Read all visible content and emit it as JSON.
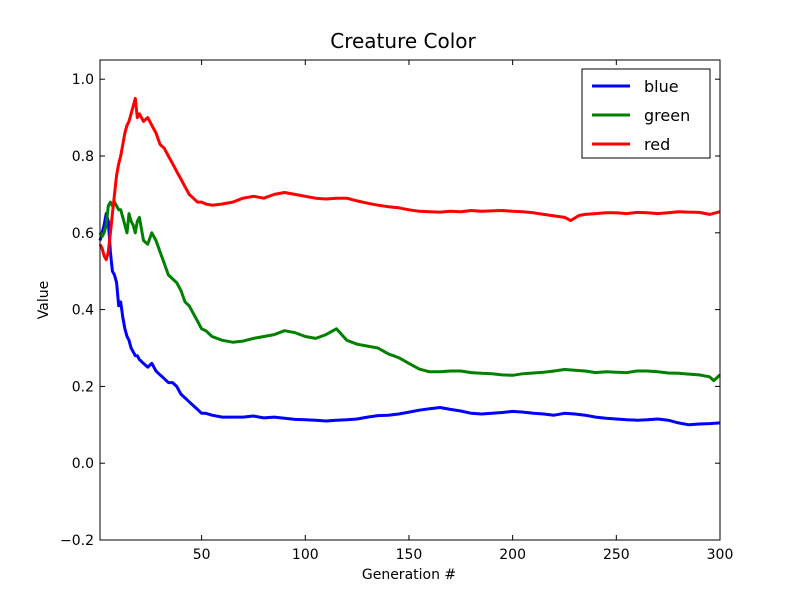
{
  "chart_data": {
    "type": "line",
    "title": "Creature Color",
    "xlabel": "Generation #",
    "ylabel": "Value",
    "xlim": [
      1,
      300
    ],
    "ylim": [
      -0.2,
      1.05
    ],
    "x_ticks": [
      50,
      100,
      150,
      200,
      250,
      300
    ],
    "x_tick_labels": [
      "50",
      "100",
      "150",
      "200",
      "250",
      "300"
    ],
    "y_ticks": [
      -0.2,
      0.0,
      0.2,
      0.4,
      0.6,
      0.8,
      1.0
    ],
    "y_tick_labels": [
      "−0.2",
      "0.0",
      "0.2",
      "0.4",
      "0.6",
      "0.8",
      "1.0"
    ],
    "grid": false,
    "legend_position": "top-right",
    "series": [
      {
        "name": "blue",
        "color": "#0000ff",
        "points": [
          [
            1,
            0.58
          ],
          [
            2,
            0.6
          ],
          [
            3,
            0.62
          ],
          [
            4,
            0.65
          ],
          [
            5,
            0.63
          ],
          [
            6,
            0.55
          ],
          [
            7,
            0.5
          ],
          [
            8,
            0.49
          ],
          [
            9,
            0.47
          ],
          [
            10,
            0.41
          ],
          [
            11,
            0.42
          ],
          [
            12,
            0.38
          ],
          [
            13,
            0.35
          ],
          [
            14,
            0.33
          ],
          [
            15,
            0.32
          ],
          [
            16,
            0.3
          ],
          [
            17,
            0.29
          ],
          [
            18,
            0.28
          ],
          [
            19,
            0.28
          ],
          [
            20,
            0.27
          ],
          [
            22,
            0.26
          ],
          [
            24,
            0.25
          ],
          [
            26,
            0.26
          ],
          [
            28,
            0.24
          ],
          [
            30,
            0.23
          ],
          [
            32,
            0.22
          ],
          [
            34,
            0.21
          ],
          [
            36,
            0.21
          ],
          [
            38,
            0.2
          ],
          [
            40,
            0.18
          ],
          [
            42,
            0.17
          ],
          [
            44,
            0.16
          ],
          [
            46,
            0.15
          ],
          [
            48,
            0.14
          ],
          [
            50,
            0.13
          ],
          [
            52,
            0.13
          ],
          [
            55,
            0.125
          ],
          [
            60,
            0.12
          ],
          [
            65,
            0.12
          ],
          [
            70,
            0.12
          ],
          [
            75,
            0.123
          ],
          [
            80,
            0.118
          ],
          [
            85,
            0.12
          ],
          [
            90,
            0.117
          ],
          [
            95,
            0.114
          ],
          [
            100,
            0.113
          ],
          [
            105,
            0.112
          ],
          [
            110,
            0.11
          ],
          [
            115,
            0.112
          ],
          [
            120,
            0.113
          ],
          [
            125,
            0.115
          ],
          [
            130,
            0.12
          ],
          [
            135,
            0.124
          ],
          [
            140,
            0.125
          ],
          [
            145,
            0.128
          ],
          [
            150,
            0.133
          ],
          [
            155,
            0.138
          ],
          [
            160,
            0.142
          ],
          [
            165,
            0.145
          ],
          [
            170,
            0.14
          ],
          [
            175,
            0.136
          ],
          [
            180,
            0.13
          ],
          [
            185,
            0.128
          ],
          [
            190,
            0.13
          ],
          [
            195,
            0.132
          ],
          [
            200,
            0.135
          ],
          [
            205,
            0.133
          ],
          [
            210,
            0.13
          ],
          [
            215,
            0.128
          ],
          [
            220,
            0.125
          ],
          [
            225,
            0.13
          ],
          [
            230,
            0.128
          ],
          [
            235,
            0.125
          ],
          [
            240,
            0.12
          ],
          [
            245,
            0.117
          ],
          [
            250,
            0.115
          ],
          [
            255,
            0.113
          ],
          [
            260,
            0.112
          ],
          [
            265,
            0.113
          ],
          [
            270,
            0.115
          ],
          [
            275,
            0.112
          ],
          [
            280,
            0.105
          ],
          [
            285,
            0.1
          ],
          [
            290,
            0.102
          ],
          [
            295,
            0.103
          ],
          [
            300,
            0.105
          ]
        ]
      },
      {
        "name": "green",
        "color": "#008000",
        "points": [
          [
            1,
            0.6
          ],
          [
            2,
            0.59
          ],
          [
            3,
            0.6
          ],
          [
            4,
            0.62
          ],
          [
            5,
            0.67
          ],
          [
            6,
            0.68
          ],
          [
            7,
            0.67
          ],
          [
            8,
            0.68
          ],
          [
            9,
            0.67
          ],
          [
            10,
            0.66
          ],
          [
            11,
            0.66
          ],
          [
            12,
            0.64
          ],
          [
            13,
            0.62
          ],
          [
            14,
            0.6
          ],
          [
            15,
            0.65
          ],
          [
            16,
            0.63
          ],
          [
            17,
            0.62
          ],
          [
            18,
            0.6
          ],
          [
            19,
            0.63
          ],
          [
            20,
            0.64
          ],
          [
            22,
            0.58
          ],
          [
            24,
            0.57
          ],
          [
            26,
            0.6
          ],
          [
            28,
            0.58
          ],
          [
            30,
            0.55
          ],
          [
            32,
            0.52
          ],
          [
            34,
            0.49
          ],
          [
            36,
            0.48
          ],
          [
            38,
            0.47
          ],
          [
            40,
            0.45
          ],
          [
            42,
            0.42
          ],
          [
            44,
            0.41
          ],
          [
            46,
            0.39
          ],
          [
            48,
            0.37
          ],
          [
            50,
            0.35
          ],
          [
            52,
            0.345
          ],
          [
            55,
            0.33
          ],
          [
            60,
            0.32
          ],
          [
            65,
            0.315
          ],
          [
            70,
            0.318
          ],
          [
            75,
            0.325
          ],
          [
            80,
            0.33
          ],
          [
            85,
            0.335
          ],
          [
            90,
            0.345
          ],
          [
            95,
            0.34
          ],
          [
            100,
            0.33
          ],
          [
            105,
            0.325
          ],
          [
            110,
            0.335
          ],
          [
            115,
            0.35
          ],
          [
            120,
            0.32
          ],
          [
            125,
            0.31
          ],
          [
            130,
            0.305
          ],
          [
            135,
            0.3
          ],
          [
            140,
            0.285
          ],
          [
            145,
            0.275
          ],
          [
            150,
            0.26
          ],
          [
            155,
            0.245
          ],
          [
            160,
            0.238
          ],
          [
            165,
            0.238
          ],
          [
            170,
            0.24
          ],
          [
            175,
            0.24
          ],
          [
            180,
            0.236
          ],
          [
            185,
            0.234
          ],
          [
            190,
            0.233
          ],
          [
            195,
            0.23
          ],
          [
            200,
            0.229
          ],
          [
            205,
            0.233
          ],
          [
            210,
            0.235
          ],
          [
            215,
            0.237
          ],
          [
            220,
            0.24
          ],
          [
            225,
            0.244
          ],
          [
            230,
            0.242
          ],
          [
            235,
            0.24
          ],
          [
            240,
            0.236
          ],
          [
            245,
            0.238
          ],
          [
            250,
            0.237
          ],
          [
            255,
            0.236
          ],
          [
            260,
            0.24
          ],
          [
            265,
            0.24
          ],
          [
            270,
            0.238
          ],
          [
            275,
            0.235
          ],
          [
            280,
            0.234
          ],
          [
            285,
            0.232
          ],
          [
            290,
            0.23
          ],
          [
            295,
            0.225
          ],
          [
            297,
            0.215
          ],
          [
            300,
            0.23
          ]
        ]
      },
      {
        "name": "red",
        "color": "#ff0000",
        "points": [
          [
            1,
            0.57
          ],
          [
            2,
            0.56
          ],
          [
            3,
            0.54
          ],
          [
            4,
            0.53
          ],
          [
            5,
            0.55
          ],
          [
            6,
            0.6
          ],
          [
            7,
            0.65
          ],
          [
            8,
            0.7
          ],
          [
            9,
            0.75
          ],
          [
            10,
            0.78
          ],
          [
            11,
            0.8
          ],
          [
            12,
            0.83
          ],
          [
            13,
            0.86
          ],
          [
            14,
            0.88
          ],
          [
            15,
            0.89
          ],
          [
            16,
            0.91
          ],
          [
            17,
            0.93
          ],
          [
            18,
            0.95
          ],
          [
            19,
            0.9
          ],
          [
            20,
            0.91
          ],
          [
            22,
            0.89
          ],
          [
            24,
            0.9
          ],
          [
            26,
            0.88
          ],
          [
            28,
            0.86
          ],
          [
            30,
            0.83
          ],
          [
            32,
            0.82
          ],
          [
            34,
            0.8
          ],
          [
            36,
            0.78
          ],
          [
            38,
            0.76
          ],
          [
            40,
            0.74
          ],
          [
            42,
            0.72
          ],
          [
            44,
            0.7
          ],
          [
            46,
            0.69
          ],
          [
            48,
            0.68
          ],
          [
            50,
            0.68
          ],
          [
            52,
            0.675
          ],
          [
            55,
            0.672
          ],
          [
            60,
            0.675
          ],
          [
            65,
            0.68
          ],
          [
            70,
            0.69
          ],
          [
            75,
            0.695
          ],
          [
            80,
            0.69
          ],
          [
            85,
            0.7
          ],
          [
            90,
            0.705
          ],
          [
            95,
            0.7
          ],
          [
            100,
            0.695
          ],
          [
            105,
            0.69
          ],
          [
            110,
            0.688
          ],
          [
            115,
            0.69
          ],
          [
            120,
            0.69
          ],
          [
            125,
            0.683
          ],
          [
            130,
            0.677
          ],
          [
            135,
            0.672
          ],
          [
            140,
            0.668
          ],
          [
            145,
            0.665
          ],
          [
            150,
            0.66
          ],
          [
            155,
            0.656
          ],
          [
            160,
            0.655
          ],
          [
            165,
            0.654
          ],
          [
            170,
            0.656
          ],
          [
            175,
            0.655
          ],
          [
            180,
            0.658
          ],
          [
            185,
            0.656
          ],
          [
            190,
            0.657
          ],
          [
            195,
            0.658
          ],
          [
            200,
            0.656
          ],
          [
            205,
            0.655
          ],
          [
            210,
            0.652
          ],
          [
            215,
            0.648
          ],
          [
            220,
            0.644
          ],
          [
            225,
            0.64
          ],
          [
            228,
            0.632
          ],
          [
            232,
            0.645
          ],
          [
            235,
            0.648
          ],
          [
            240,
            0.65
          ],
          [
            245,
            0.652
          ],
          [
            250,
            0.652
          ],
          [
            255,
            0.65
          ],
          [
            260,
            0.653
          ],
          [
            265,
            0.652
          ],
          [
            270,
            0.65
          ],
          [
            275,
            0.652
          ],
          [
            280,
            0.655
          ],
          [
            285,
            0.654
          ],
          [
            290,
            0.653
          ],
          [
            295,
            0.648
          ],
          [
            300,
            0.655
          ]
        ]
      }
    ]
  }
}
